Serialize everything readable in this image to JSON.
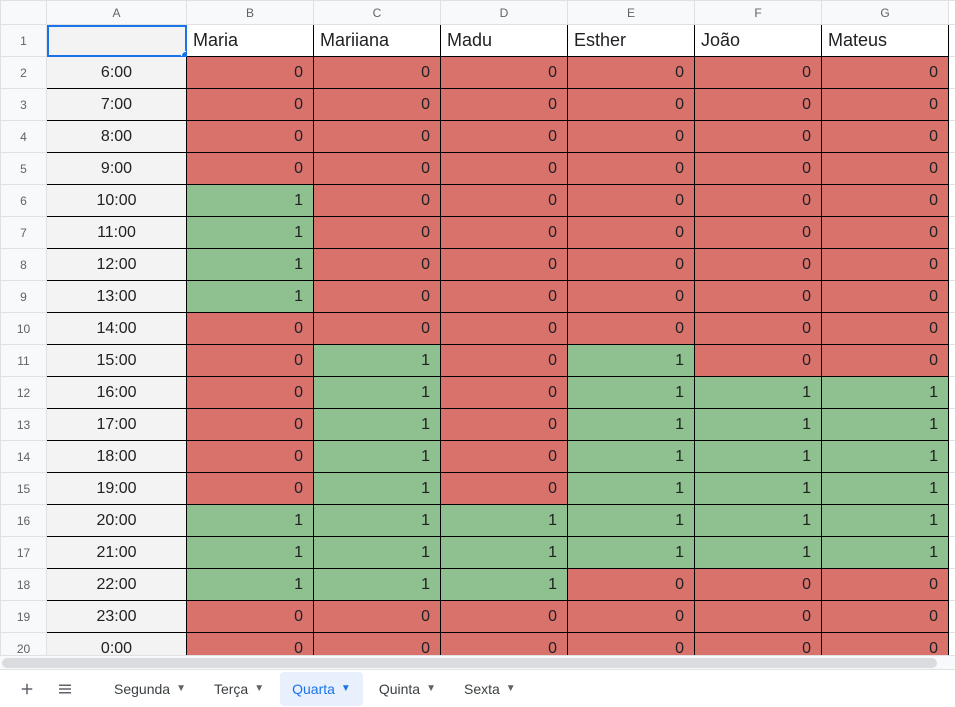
{
  "columns": [
    "A",
    "B",
    "C",
    "D",
    "E",
    "F",
    "G"
  ],
  "row_numbers": [
    1,
    2,
    3,
    4,
    5,
    6,
    7,
    8,
    9,
    10,
    11,
    12,
    13,
    14,
    15,
    16,
    17,
    18,
    19,
    20
  ],
  "names": [
    "Maria",
    "Mariiana",
    "Madu",
    "Esther",
    "João",
    "Mateus"
  ],
  "times": [
    "6:00",
    "7:00",
    "8:00",
    "9:00",
    "10:00",
    "11:00",
    "12:00",
    "13:00",
    "14:00",
    "15:00",
    "16:00",
    "17:00",
    "18:00",
    "19:00",
    "20:00",
    "21:00",
    "22:00",
    "23:00",
    "0:00"
  ],
  "values": [
    [
      0,
      0,
      0,
      0,
      0,
      0
    ],
    [
      0,
      0,
      0,
      0,
      0,
      0
    ],
    [
      0,
      0,
      0,
      0,
      0,
      0
    ],
    [
      0,
      0,
      0,
      0,
      0,
      0
    ],
    [
      1,
      0,
      0,
      0,
      0,
      0
    ],
    [
      1,
      0,
      0,
      0,
      0,
      0
    ],
    [
      1,
      0,
      0,
      0,
      0,
      0
    ],
    [
      1,
      0,
      0,
      0,
      0,
      0
    ],
    [
      0,
      0,
      0,
      0,
      0,
      0
    ],
    [
      0,
      1,
      0,
      1,
      0,
      0
    ],
    [
      0,
      1,
      0,
      1,
      1,
      1
    ],
    [
      0,
      1,
      0,
      1,
      1,
      1
    ],
    [
      0,
      1,
      0,
      1,
      1,
      1
    ],
    [
      0,
      1,
      0,
      1,
      1,
      1
    ],
    [
      1,
      1,
      1,
      1,
      1,
      1
    ],
    [
      1,
      1,
      1,
      1,
      1,
      1
    ],
    [
      1,
      1,
      1,
      0,
      0,
      0
    ],
    [
      0,
      0,
      0,
      0,
      0,
      0
    ],
    [
      0,
      0,
      0,
      0,
      0,
      0
    ]
  ],
  "colors": {
    "zero": "#d9726b",
    "one": "#8fc08f"
  },
  "tabs": [
    {
      "label": "Segunda",
      "active": false
    },
    {
      "label": "Terça",
      "active": false
    },
    {
      "label": "Quarta",
      "active": true
    },
    {
      "label": "Quinta",
      "active": false
    },
    {
      "label": "Sexta",
      "active": false
    }
  ],
  "col_widths": {
    "rownum": 46,
    "A": 140,
    "other": 127,
    "narrow": 12
  }
}
